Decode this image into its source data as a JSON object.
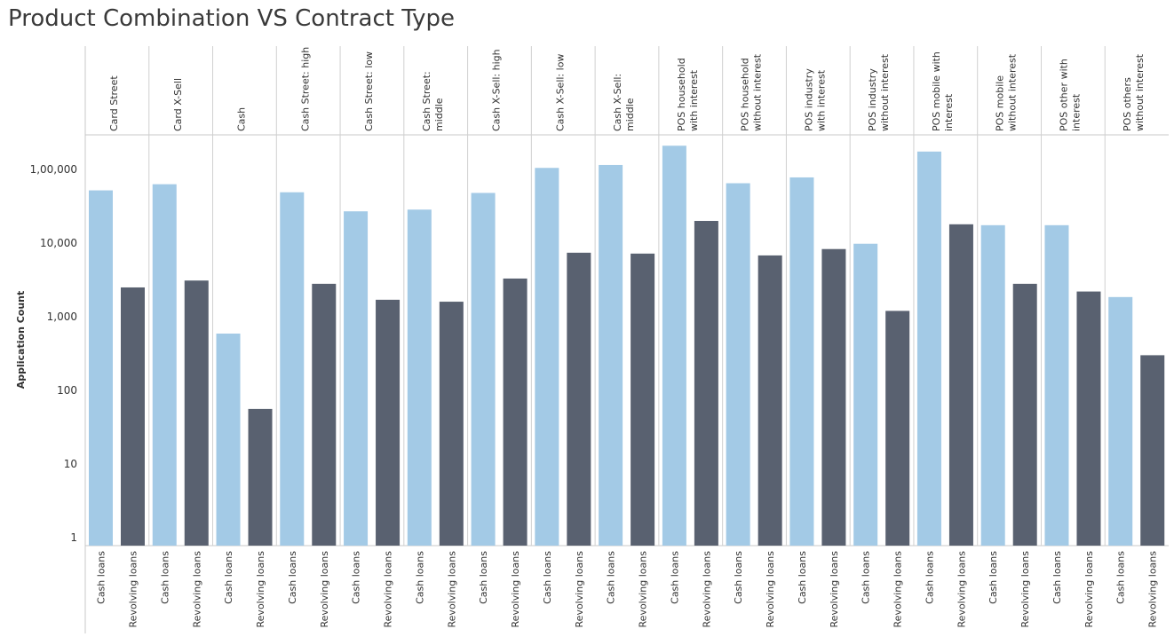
{
  "chart_data": {
    "type": "bar",
    "title": "Product Combination VS Contract Type",
    "ylabel": "Application Count",
    "yscale": "log",
    "ylim": [
      1,
      300000
    ],
    "yticks": [
      {
        "value": 1,
        "label": "1"
      },
      {
        "value": 10,
        "label": "10"
      },
      {
        "value": 100,
        "label": "100"
      },
      {
        "value": 1000,
        "label": "1,000"
      },
      {
        "value": 10000,
        "label": "10,000"
      },
      {
        "value": 100000,
        "label": "1,00,000"
      }
    ],
    "grid": false,
    "legend": "none",
    "colors": {
      "Cash loans": "#a3cae6",
      "Revolving loans": "#596170"
    },
    "groups": [
      {
        "lines": [
          "Card Street"
        ],
        "values": [
          {
            "type": "Cash loans",
            "value": 52000
          },
          {
            "type": "Revolving loans",
            "value": 2500
          }
        ]
      },
      {
        "lines": [
          "Card X-Sell"
        ],
        "values": [
          {
            "type": "Cash loans",
            "value": 63000
          },
          {
            "type": "Revolving loans",
            "value": 3100
          }
        ]
      },
      {
        "lines": [
          "Cash"
        ],
        "values": [
          {
            "type": "Cash loans",
            "value": 590
          },
          {
            "type": "Revolving loans",
            "value": 56
          }
        ]
      },
      {
        "lines": [
          "Cash Street: high"
        ],
        "values": [
          {
            "type": "Cash loans",
            "value": 49000
          },
          {
            "type": "Revolving loans",
            "value": 2800
          }
        ]
      },
      {
        "lines": [
          "Cash Street: low"
        ],
        "values": [
          {
            "type": "Cash loans",
            "value": 27000
          },
          {
            "type": "Revolving loans",
            "value": 1700
          }
        ]
      },
      {
        "lines": [
          "Cash Street:",
          "middle"
        ],
        "values": [
          {
            "type": "Cash loans",
            "value": 28500
          },
          {
            "type": "Revolving loans",
            "value": 1600
          }
        ]
      },
      {
        "lines": [
          "Cash X-Sell: high"
        ],
        "values": [
          {
            "type": "Cash loans",
            "value": 48000
          },
          {
            "type": "Revolving loans",
            "value": 3300
          }
        ]
      },
      {
        "lines": [
          "Cash X-Sell: low"
        ],
        "values": [
          {
            "type": "Cash loans",
            "value": 105000
          },
          {
            "type": "Revolving loans",
            "value": 7400
          }
        ]
      },
      {
        "lines": [
          "Cash X-Sell:",
          "middle"
        ],
        "values": [
          {
            "type": "Cash loans",
            "value": 115000
          },
          {
            "type": "Revolving loans",
            "value": 7200
          }
        ]
      },
      {
        "lines": [
          "POS household",
          "with interest"
        ],
        "values": [
          {
            "type": "Cash loans",
            "value": 210000
          },
          {
            "type": "Revolving loans",
            "value": 20000
          }
        ]
      },
      {
        "lines": [
          "POS household",
          "without interest"
        ],
        "values": [
          {
            "type": "Cash loans",
            "value": 65000
          },
          {
            "type": "Revolving loans",
            "value": 6800
          }
        ]
      },
      {
        "lines": [
          "POS industry",
          "with interest"
        ],
        "values": [
          {
            "type": "Cash loans",
            "value": 78000
          },
          {
            "type": "Revolving loans",
            "value": 8300
          }
        ]
      },
      {
        "lines": [
          "POS industry",
          "without interest"
        ],
        "values": [
          {
            "type": "Cash loans",
            "value": 9800
          },
          {
            "type": "Revolving loans",
            "value": 1200
          }
        ]
      },
      {
        "lines": [
          "POS mobile with",
          "interest"
        ],
        "values": [
          {
            "type": "Cash loans",
            "value": 175000
          },
          {
            "type": "Revolving loans",
            "value": 18000
          }
        ]
      },
      {
        "lines": [
          "POS mobile",
          "without interest"
        ],
        "values": [
          {
            "type": "Cash loans",
            "value": 17500
          },
          {
            "type": "Revolving loans",
            "value": 2800
          }
        ]
      },
      {
        "lines": [
          "POS other with",
          "interest"
        ],
        "values": [
          {
            "type": "Cash loans",
            "value": 17500
          },
          {
            "type": "Revolving loans",
            "value": 2200
          }
        ]
      },
      {
        "lines": [
          "POS others",
          "without interest"
        ],
        "values": [
          {
            "type": "Cash loans",
            "value": 1850
          },
          {
            "type": "Revolving loans",
            "value": 300
          }
        ]
      }
    ]
  }
}
